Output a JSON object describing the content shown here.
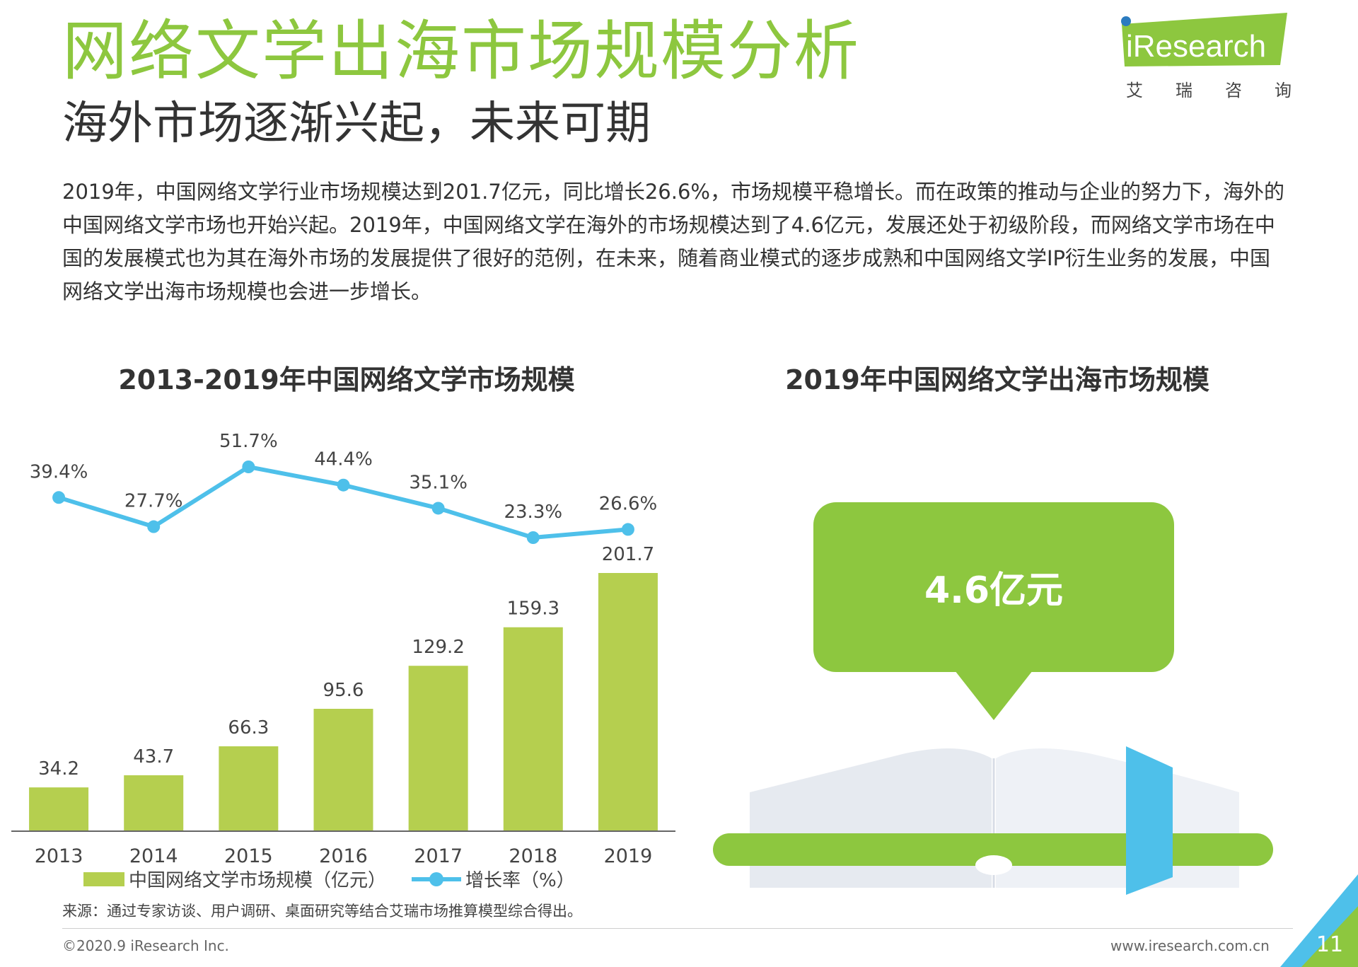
{
  "header": {
    "title": "网络文学出海市场规模分析",
    "subtitle": "海外市场逐渐兴起，未来可期"
  },
  "logo": {
    "brand": "iResearch",
    "chinese_chars": [
      "艾",
      "瑞",
      "咨",
      "询"
    ],
    "accent_color": "#8dc73f"
  },
  "body_text": "2019年，中国网络文学行业市场规模达到201.7亿元，同比增长26.6%，市场规模平稳增长。而在政策的推动与企业的努力下，海外的中国网络文学市场也开始兴起。2019年，中国网络文学在海外的市场规模达到了4.6亿元，发展还处于初级阶段，而网络文学市场在中国的发展模式也为其在海外市场的发展提供了很好的范例，在未来，随着商业模式的逐步成熟和中国网络文学IP衍生业务的发展，中国网络文学出海市场规模也会进一步增长。",
  "chart_data": [
    {
      "type": "bar",
      "title": "2013-2019年中国网络文学市场规模",
      "categories": [
        "2013",
        "2014",
        "2015",
        "2016",
        "2017",
        "2018",
        "2019"
      ],
      "series": [
        {
          "name": "中国网络文学市场规模（亿元）",
          "type": "bar",
          "values": [
            34.2,
            43.7,
            66.3,
            95.6,
            129.2,
            159.3,
            201.7
          ],
          "labels": [
            "34.2",
            "43.7",
            "66.3",
            "95.6",
            "129.2",
            "159.3",
            "201.7"
          ],
          "color": "#b5cf4f"
        },
        {
          "name": "增长率（%）",
          "type": "line",
          "values": [
            39.4,
            27.7,
            51.7,
            44.4,
            35.1,
            23.3,
            26.6
          ],
          "labels": [
            "39.4%",
            "27.7%",
            "51.7%",
            "44.4%",
            "35.1%",
            "23.3%",
            "26.6%"
          ],
          "color": "#4ec0ea"
        }
      ],
      "grid": false,
      "legend": "bottom"
    },
    {
      "type": "table",
      "title": "2019年中国网络文学出海市场规模",
      "value": 4.6,
      "value_label": "4.6亿元"
    }
  ],
  "footer": {
    "source": "来源：通过专家访谈、用户调研、桌面研究等结合艾瑞市场推算模型综合得出。",
    "copyright": "©2020.9 iResearch Inc.",
    "website": "www.iresearch.com.cn",
    "page_number": "11"
  },
  "colors": {
    "green": "#8dc73f",
    "bar_green": "#b5cf4f",
    "blue": "#4ec0ea",
    "book_gray": "#e6eaf0"
  }
}
